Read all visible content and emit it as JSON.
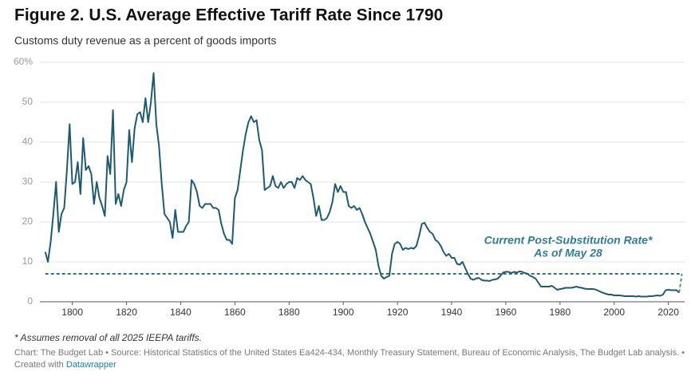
{
  "chart_data": {
    "type": "line",
    "title": "Figure 2. U.S. Average Effective Tariff Rate Since 1790",
    "subtitle": "Customs duty revenue as a percent of goods imports",
    "annotation": [
      "Current Post-Substitution Rate*",
      "As of May 28"
    ],
    "footnote": "* Assumes removal of all 2025 IEEPA tariffs.",
    "source": "Chart: The Budget Lab • Source: Historical Statistics of the United States Ea424-434, Monthly Treasury Statement, Bureau of Economic Analysis, The Budget Lab analysis. •",
    "created_with": "Created with",
    "tool": "Datawrapper",
    "xlim": [
      1789.5,
      2026
    ],
    "xticks": [
      1800,
      1820,
      1840,
      1860,
      1880,
      1900,
      1920,
      1940,
      1960,
      1980,
      2000,
      2020
    ],
    "ylim": [
      0,
      60
    ],
    "yticks": [
      0,
      10,
      20,
      30,
      40,
      50,
      {
        "value": 60,
        "label": "60%"
      }
    ],
    "grid": true,
    "series": [
      {
        "color": "#1d5b73",
        "dashed": false,
        "x": [
          1790,
          1791,
          1792,
          1793,
          1794,
          1795,
          1796,
          1797,
          1798,
          1799,
          1800,
          1801,
          1802,
          1803,
          1804,
          1805,
          1806,
          1807,
          1808,
          1809,
          1810,
          1811,
          1812,
          1813,
          1814,
          1815,
          1816,
          1817,
          1818,
          1819,
          1820,
          1821,
          1822,
          1823,
          1824,
          1825,
          1826,
          1827,
          1828,
          1829,
          1830,
          1831,
          1832,
          1833,
          1834,
          1835,
          1836,
          1837,
          1838,
          1839,
          1840,
          1841,
          1842,
          1843,
          1844,
          1845,
          1846,
          1847,
          1848,
          1849,
          1850,
          1851,
          1852,
          1853,
          1854,
          1855,
          1856,
          1857,
          1858,
          1859,
          1860,
          1861,
          1862,
          1863,
          1864,
          1865,
          1866,
          1867,
          1868,
          1869,
          1870,
          1871,
          1872,
          1873,
          1874,
          1875,
          1876,
          1877,
          1878,
          1879,
          1880,
          1881,
          1882,
          1883,
          1884,
          1885,
          1886,
          1887,
          1888,
          1889,
          1890,
          1891,
          1892,
          1893,
          1894,
          1895,
          1896,
          1897,
          1898,
          1899,
          1900,
          1901,
          1902,
          1903,
          1904,
          1905,
          1906,
          1907,
          1908,
          1909,
          1910,
          1911,
          1912,
          1913,
          1914,
          1915,
          1916,
          1917,
          1918,
          1919,
          1920,
          1921,
          1922,
          1923,
          1924,
          1925,
          1926,
          1927,
          1928,
          1929,
          1930,
          1931,
          1932,
          1933,
          1934,
          1935,
          1936,
          1937,
          1938,
          1939,
          1940,
          1941,
          1942,
          1943,
          1944,
          1945,
          1946,
          1947,
          1948,
          1949,
          1950,
          1951,
          1952,
          1953,
          1954,
          1955,
          1956,
          1957,
          1958,
          1959,
          1960,
          1961,
          1962,
          1963,
          1964,
          1965,
          1966,
          1967,
          1968,
          1969,
          1970,
          1971,
          1972,
          1973,
          1974,
          1975,
          1976,
          1977,
          1978,
          1979,
          1980,
          1981,
          1982,
          1983,
          1984,
          1985,
          1986,
          1987,
          1988,
          1989,
          1990,
          1991,
          1992,
          1993,
          1994,
          1995,
          1996,
          1997,
          1998,
          1999,
          2000,
          2001,
          2002,
          2003,
          2004,
          2005,
          2006,
          2007,
          2008,
          2009,
          2010,
          2011,
          2012,
          2013,
          2014,
          2015,
          2016,
          2017,
          2018,
          2019,
          2020,
          2021,
          2022,
          2023,
          2024
        ],
        "values": [
          12.5,
          10,
          15,
          22,
          30,
          17.5,
          22,
          23.5,
          33,
          44.5,
          29.5,
          30,
          35,
          27,
          41,
          33,
          34,
          32,
          24.5,
          30,
          26,
          24,
          21.5,
          36.5,
          32,
          48,
          24.5,
          27,
          24,
          28,
          30,
          43,
          35,
          43.5,
          47,
          47.5,
          45,
          51,
          45,
          50,
          57.3,
          44.5,
          39,
          29.5,
          22,
          21,
          20,
          16,
          23,
          17.5,
          17.5,
          17.5,
          19,
          20,
          30.5,
          29.5,
          27.5,
          24,
          23.5,
          24.5,
          24.5,
          24.5,
          23.5,
          23.5,
          23,
          19.5,
          17,
          15.5,
          15.5,
          14.5,
          26,
          28,
          33,
          38,
          42,
          45,
          46.5,
          45,
          45.5,
          40.5,
          38,
          28,
          28.5,
          29,
          31.5,
          29,
          28.5,
          30,
          28.5,
          29.5,
          30,
          30,
          28.5,
          31,
          30.5,
          31.5,
          30.5,
          30,
          29.5,
          26,
          21.5,
          24,
          20.5,
          20.5,
          21,
          22.5,
          25,
          29.5,
          27.5,
          29,
          27.5,
          27.5,
          24,
          23.5,
          24,
          23,
          23.5,
          22,
          20,
          18.5,
          17,
          15,
          13,
          9,
          6.5,
          5.8,
          6.2,
          6.5,
          12,
          14.5,
          15,
          14.5,
          13,
          13.5,
          13.2,
          13.5,
          13.3,
          14,
          16.5,
          19.5,
          19.8,
          18.5,
          17.5,
          17,
          15.5,
          15,
          14,
          12.5,
          11.5,
          12,
          11,
          11,
          9.5,
          9.3,
          10,
          8.5,
          7,
          5.8,
          5.5,
          5.8,
          6,
          5.5,
          5.3,
          5.3,
          5.2,
          5.5,
          5.6,
          5.8,
          6.5,
          7.3,
          7.5,
          7.5,
          7.2,
          7.5,
          7.3,
          7.6,
          7.5,
          7.2,
          7,
          6.5,
          6.2,
          5.8,
          4.8,
          3.8,
          3.8,
          3.8,
          3.8,
          4,
          3.5,
          3,
          3.2,
          3.3,
          3.5,
          3.5,
          3.5,
          3.6,
          3.8,
          3.6,
          3.5,
          3.3,
          3.2,
          3.2,
          3.2,
          3.1,
          2.8,
          2.5,
          2.2,
          2,
          1.8,
          1.8,
          1.6,
          1.6,
          1.6,
          1.5,
          1.4,
          1.4,
          1.4,
          1.4,
          1.3,
          1.4,
          1.3,
          1.3,
          1.3,
          1.4,
          1.4,
          1.5,
          1.6,
          1.5,
          1.8,
          2.9,
          3,
          2.9,
          2.9,
          2.9,
          2.3
        ]
      },
      {
        "color": "#1d5b73",
        "dashed": true,
        "x": [
          1790,
          2025
        ],
        "values": [
          7,
          7
        ]
      },
      {
        "color": "#3f8f55",
        "dashed": true,
        "x": [
          2024,
          2025
        ],
        "values": [
          2.3,
          7
        ]
      }
    ]
  }
}
